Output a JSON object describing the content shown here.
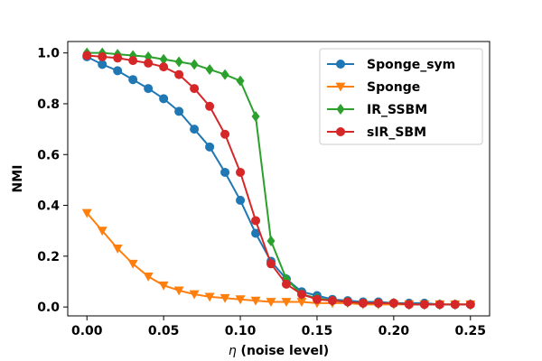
{
  "chart_data": {
    "type": "line",
    "title": "",
    "xlabel": "η (noise level)",
    "ylabel": "NMI",
    "xlim": [
      -0.0125,
      0.2625
    ],
    "ylim": [
      -0.035,
      1.045
    ],
    "xticks": [
      0.0,
      0.05,
      0.1,
      0.15,
      0.2,
      0.25
    ],
    "xtick_labels": [
      "0.00",
      "0.05",
      "0.10",
      "0.15",
      "0.20",
      "0.25"
    ],
    "yticks": [
      0.0,
      0.2,
      0.4,
      0.6,
      0.8,
      1.0
    ],
    "ytick_labels": [
      "0.0",
      "0.2",
      "0.4",
      "0.6",
      "0.8",
      "1.0"
    ],
    "grid": false,
    "legend_position": "top-right",
    "x": [
      0.0,
      0.01,
      0.02,
      0.03,
      0.04,
      0.05,
      0.06,
      0.07,
      0.08,
      0.09,
      0.1,
      0.11,
      0.12,
      0.13,
      0.14,
      0.15,
      0.16,
      0.17,
      0.18,
      0.19,
      0.2,
      0.21,
      0.22,
      0.23,
      0.24,
      0.25
    ],
    "series": [
      {
        "name": "Sponge_sym",
        "color": "#1f77b4",
        "marker": "circle",
        "values": [
          0.985,
          0.955,
          0.93,
          0.895,
          0.86,
          0.82,
          0.77,
          0.7,
          0.63,
          0.53,
          0.42,
          0.29,
          0.18,
          0.11,
          0.06,
          0.045,
          0.03,
          0.025,
          0.02,
          0.02,
          0.015,
          0.015,
          0.015,
          0.01,
          0.01,
          0.01
        ]
      },
      {
        "name": "Sponge",
        "color": "#ff7f0e",
        "marker": "triangle-down",
        "values": [
          0.37,
          0.3,
          0.23,
          0.17,
          0.12,
          0.085,
          0.065,
          0.05,
          0.04,
          0.035,
          0.03,
          0.025,
          0.02,
          0.02,
          0.02,
          0.015,
          0.015,
          0.015,
          0.01,
          0.01,
          0.01,
          0.01,
          0.01,
          0.01,
          0.01,
          0.01
        ]
      },
      {
        "name": "IR_SSBM",
        "color": "#2ca02c",
        "marker": "diamond",
        "values": [
          1.0,
          1.0,
          0.995,
          0.99,
          0.985,
          0.975,
          0.965,
          0.955,
          0.935,
          0.915,
          0.89,
          0.75,
          0.26,
          0.11,
          0.05,
          0.035,
          0.025,
          0.02,
          0.015,
          0.015,
          0.015,
          0.01,
          0.01,
          0.01,
          0.01,
          0.01
        ]
      },
      {
        "name": "sIR_SBM",
        "color": "#d62728",
        "marker": "circle",
        "values": [
          0.99,
          0.985,
          0.98,
          0.97,
          0.96,
          0.945,
          0.915,
          0.86,
          0.79,
          0.68,
          0.53,
          0.34,
          0.17,
          0.09,
          0.05,
          0.03,
          0.025,
          0.02,
          0.015,
          0.015,
          0.015,
          0.01,
          0.01,
          0.01,
          0.01,
          0.01
        ]
      }
    ]
  }
}
